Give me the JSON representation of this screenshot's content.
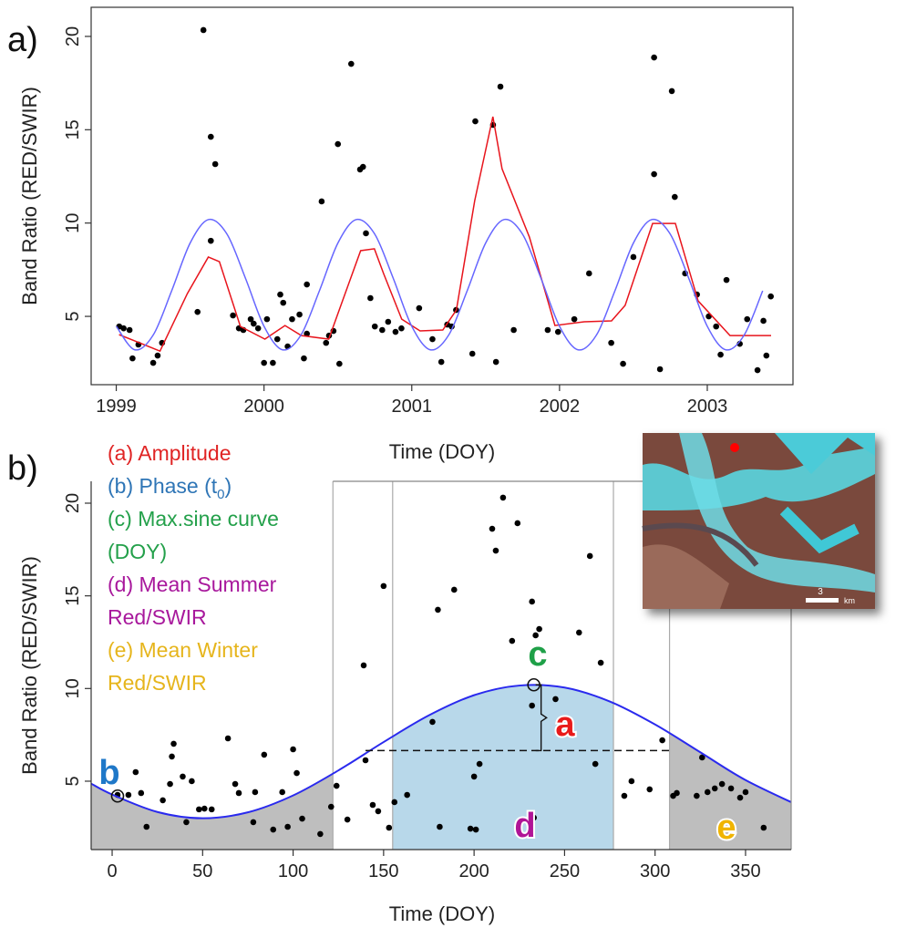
{
  "chart_data": [
    {
      "type": "scatter",
      "panel_label": "a)",
      "xlabel": "Time (DOY)",
      "ylabel": "Band Ratio (RED/SWIR)",
      "xlim": [
        1998.83,
        2003.58
      ],
      "ylim": [
        1.34,
        21.56
      ],
      "xticks": [
        1999,
        2000,
        2001,
        2002,
        2003
      ],
      "yticks": [
        5,
        10,
        15,
        20
      ],
      "series": [
        {
          "style": "points",
          "color": "#000000",
          "x": [
            1999.02,
            1999.05,
            1999.09,
            1999.11,
            1999.15,
            1999.25,
            1999.28,
            1999.31,
            1999.55,
            1999.59,
            1999.64,
            1999.67,
            1999.64,
            1999.79,
            1999.83,
            1999.86,
            1999.91,
            1999.93,
            1999.96,
            2000.0,
            2000.02,
            2000.06,
            2000.09,
            2000.11,
            2000.13,
            2000.16,
            2000.19,
            2000.24,
            2000.27,
            2000.29,
            2000.29,
            2000.39,
            2000.42,
            2000.44,
            2000.47,
            2000.5,
            2000.51,
            2000.59,
            2000.65,
            2000.67,
            2000.69,
            2000.72,
            2000.75,
            2000.8,
            2000.84,
            2000.89,
            2000.93,
            2001.05,
            2001.14,
            2001.2,
            2001.24,
            2001.27,
            2001.3,
            2001.41,
            2001.43,
            2001.55,
            2001.57,
            2001.6,
            2001.69,
            2001.92,
            2001.99,
            2002.1,
            2002.2,
            2002.35,
            2002.43,
            2002.5,
            2002.64,
            2002.64,
            2002.68,
            2002.76,
            2002.78,
            2002.85,
            2002.93,
            2003.01,
            2003.06,
            2003.09,
            2003.13,
            2003.22,
            2003.27,
            2003.34,
            2003.38,
            2003.4,
            2003.43
          ],
          "values": [
            4.46,
            4.36,
            4.27,
            2.75,
            3.49,
            2.51,
            2.9,
            3.58,
            5.24,
            20.34,
            14.62,
            13.16,
            9.05,
            5.05,
            4.36,
            4.27,
            4.85,
            4.61,
            4.36,
            2.51,
            4.85,
            2.51,
            3.78,
            6.17,
            5.73,
            3.39,
            4.85,
            5.1,
            2.75,
            4.07,
            6.71,
            11.16,
            3.58,
            3.97,
            4.22,
            14.23,
            2.46,
            18.53,
            12.87,
            13.01,
            9.45,
            5.98,
            4.46,
            4.27,
            4.71,
            4.17,
            4.36,
            5.44,
            3.78,
            2.56,
            4.56,
            4.46,
            5.34,
            3.0,
            15.45,
            15.26,
            2.56,
            17.31,
            4.27,
            4.27,
            4.17,
            4.85,
            7.3,
            3.58,
            2.46,
            8.18,
            12.62,
            18.87,
            2.17,
            17.07,
            11.4,
            7.3,
            6.17,
            5.0,
            4.46,
            2.95,
            6.95,
            3.53,
            4.85,
            2.12,
            4.76,
            2.9,
            6.07
          ]
        },
        {
          "style": "line",
          "smooth": false,
          "color": "#e8141c",
          "x": [
            1999.019,
            1999.142,
            1999.296,
            1999.481,
            1999.623,
            1999.698,
            1999.84,
            2000.006,
            2000.142,
            2000.253,
            2000.438,
            2000.531,
            2000.654,
            2000.747,
            2000.809,
            2000.932,
            2001.056,
            2001.21,
            2001.302,
            2001.426,
            2001.549,
            2001.611,
            2001.796,
            2001.969,
            2002.167,
            2002.352,
            2002.444,
            2002.63,
            2002.784,
            2002.938,
            2003.154,
            2003.432
          ],
          "values": [
            4.02,
            3.63,
            3.14,
            6.22,
            8.18,
            7.93,
            4.46,
            3.78,
            4.51,
            3.97,
            3.78,
            5.83,
            8.52,
            8.62,
            7.3,
            4.85,
            4.22,
            4.27,
            5.34,
            11.2,
            15.7,
            12.91,
            9.25,
            4.51,
            4.71,
            4.76,
            5.59,
            9.98,
            9.98,
            5.83,
            3.97,
            3.97
          ]
        },
        {
          "style": "line",
          "smooth": true,
          "color": "#6666ff",
          "x": [
            1999,
            1999.125,
            1999.25,
            1999.375,
            1999.5,
            1999.625,
            1999.75,
            1999.875,
            2000,
            2000.125,
            2000.25,
            2000.375,
            2000.5,
            2000.625,
            2000.75,
            2000.875,
            2001,
            2001.125,
            2001.25,
            2001.375,
            2001.5,
            2001.625,
            2001.75,
            2001.875,
            2002,
            2002.125,
            2002.25,
            2002.375,
            2002.5,
            2002.625,
            2002.75,
            2002.875,
            2003,
            2003.125,
            2003.25,
            2003.375
          ],
          "values": [
            4.47,
            3.21,
            4.0,
            6.37,
            8.93,
            10.19,
            9.4,
            7.03,
            4.47,
            3.21,
            4.0,
            6.37,
            8.93,
            10.19,
            9.4,
            7.03,
            4.47,
            3.21,
            4.0,
            6.37,
            8.93,
            10.19,
            9.4,
            7.03,
            4.47,
            3.21,
            4.0,
            6.37,
            8.93,
            10.19,
            9.4,
            7.03,
            4.47,
            3.21,
            4.0,
            6.37
          ]
        }
      ]
    },
    {
      "type": "scatter",
      "panel_label": "b)",
      "xlabel": "Time (DOY)",
      "ylabel": "Band Ratio (RED/SWIR)",
      "xlim": [
        -11.6,
        375.2
      ],
      "ylim": [
        1.31,
        21.18
      ],
      "xticks": [
        0,
        50,
        100,
        150,
        200,
        250,
        300,
        350
      ],
      "yticks": [
        5,
        10,
        15,
        20
      ],
      "season_bounds": [
        122,
        155,
        277,
        308
      ],
      "winter_color": "#bebebe",
      "summer_color": "#b8d8ea",
      "series": [
        {
          "style": "points",
          "color": "#000000",
          "x": [
            3,
            9,
            13,
            16,
            19,
            28,
            32,
            33,
            34,
            39,
            41,
            44,
            48,
            51,
            55,
            64,
            68,
            70,
            78,
            79,
            84,
            89,
            94,
            97,
            100,
            102,
            105,
            115,
            121,
            124,
            130,
            139,
            140,
            144,
            147,
            150,
            153,
            156,
            163,
            177,
            180,
            181,
            189,
            198,
            200,
            201,
            203,
            210,
            212,
            216,
            221,
            224,
            232,
            232,
            233,
            234,
            236,
            245,
            258,
            264,
            267,
            270,
            283,
            287,
            297,
            304,
            310,
            312,
            323,
            326,
            329,
            333,
            337,
            342,
            347,
            350,
            360
          ],
          "values": [
            4.26,
            4.26,
            5.49,
            4.36,
            2.54,
            3.97,
            4.85,
            6.33,
            7.02,
            5.25,
            2.79,
            5.0,
            3.48,
            3.52,
            3.48,
            7.31,
            4.85,
            4.36,
            2.79,
            4.41,
            6.43,
            2.39,
            4.41,
            2.54,
            6.72,
            5.44,
            2.98,
            2.15,
            3.62,
            4.75,
            2.93,
            11.25,
            6.13,
            3.72,
            3.38,
            15.53,
            2.49,
            3.87,
            4.26,
            8.2,
            14.25,
            2.54,
            15.33,
            2.44,
            5.25,
            2.39,
            5.93,
            18.62,
            17.44,
            20.3,
            12.57,
            18.92,
            14.69,
            9.08,
            3.03,
            12.87,
            13.21,
            9.43,
            13.02,
            17.15,
            5.93,
            11.39,
            4.21,
            5.0,
            4.56,
            7.21,
            4.21,
            4.36,
            4.21,
            6.28,
            4.41,
            4.61,
            4.85,
            4.61,
            4.11,
            4.41,
            2.49
          ]
        },
        {
          "style": "line",
          "smooth": true,
          "color": "#2a2aee",
          "x": [
            -12,
            0,
            25,
            50,
            75,
            100,
            125,
            150,
            175,
            200,
            225,
            250,
            275,
            300,
            325,
            350,
            380
          ],
          "values": [
            4.89,
            4.28,
            3.34,
            3.0,
            3.32,
            4.23,
            5.58,
            7.11,
            8.55,
            9.64,
            10.16,
            10.05,
            9.3,
            8.06,
            6.56,
            5.06,
            3.65
          ]
        }
      ],
      "mean_line": {
        "y": 6.65,
        "x": [
          140,
          308
        ]
      },
      "markers": [
        {
          "x": 233,
          "y": 10.2
        },
        {
          "x": 3,
          "y": 4.2
        }
      ],
      "legend_items": [
        {
          "lines": [
            "(a) Amplitude"
          ],
          "color": "#e02424"
        },
        {
          "lines": [
            "(b) Phase (t"
          ],
          "sub": "0",
          "after": ")",
          "color": "#2e75b6"
        },
        {
          "lines": [
            "(c) Max.sine curve",
            "(DOY)"
          ],
          "color": "#23a04a"
        },
        {
          "lines": [
            "(d) Mean Summer",
            "Red/SWIR"
          ],
          "color": "#a8189c"
        },
        {
          "lines": [
            "(e) Mean Winter",
            "Red/SWIR"
          ],
          "color": "#e6b51c"
        }
      ],
      "letters": [
        {
          "text": "a",
          "color": "#e81a1a"
        },
        {
          "text": "b",
          "color": "#1f78c8"
        },
        {
          "text": "c",
          "color": "#1fa048"
        },
        {
          "text": "d",
          "color": "#b01496"
        },
        {
          "text": "e",
          "color": "#f0b400"
        }
      ],
      "inset": {
        "scale_label": "3",
        "scale_unit": "km"
      }
    }
  ]
}
